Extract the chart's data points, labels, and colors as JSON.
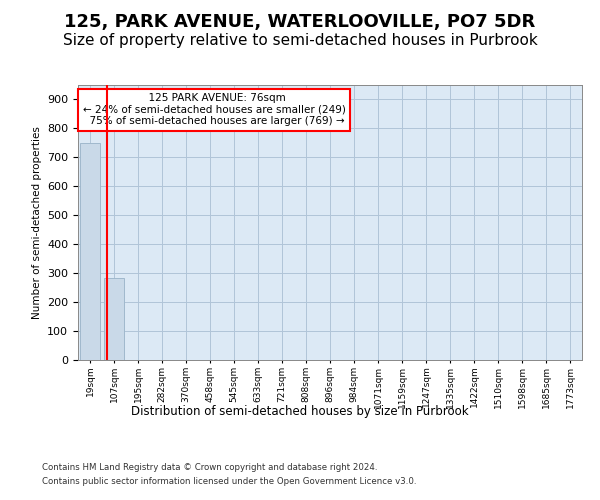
{
  "title1": "125, PARK AVENUE, WATERLOOVILLE, PO7 5DR",
  "title2": "Size of property relative to semi-detached houses in Purbrook",
  "xlabel": "Distribution of semi-detached houses by size in Purbrook",
  "ylabel": "Number of semi-detached properties",
  "footer1": "Contains HM Land Registry data © Crown copyright and database right 2024.",
  "footer2": "Contains public sector information licensed under the Open Government Licence v3.0.",
  "categories": [
    "19sqm",
    "107sqm",
    "195sqm",
    "282sqm",
    "370sqm",
    "458sqm",
    "545sqm",
    "633sqm",
    "721sqm",
    "808sqm",
    "896sqm",
    "984sqm",
    "1071sqm",
    "1159sqm",
    "1247sqm",
    "1335sqm",
    "1422sqm",
    "1510sqm",
    "1598sqm",
    "1685sqm",
    "1773sqm"
  ],
  "bar_values": [
    750,
    285,
    0,
    0,
    0,
    0,
    0,
    0,
    0,
    0,
    0,
    0,
    0,
    0,
    0,
    0,
    0,
    0,
    0,
    0,
    0
  ],
  "bar_color": "#c9d9e8",
  "bar_edgecolor": "#a0b8cc",
  "property_line_x": 0.72,
  "property_label": "125 PARK AVENUE: 76sqm",
  "smaller_pct": "24%",
  "smaller_count": 249,
  "larger_pct": "75%",
  "larger_count": 769,
  "annotation_box_color": "#ff0000",
  "property_line_color": "#ff0000",
  "ylim": [
    0,
    950
  ],
  "yticks": [
    0,
    100,
    200,
    300,
    400,
    500,
    600,
    700,
    800,
    900
  ],
  "grid_color": "#b0c4d8",
  "axis_bg_color": "#dce9f5",
  "title1_fontsize": 13,
  "title2_fontsize": 11
}
